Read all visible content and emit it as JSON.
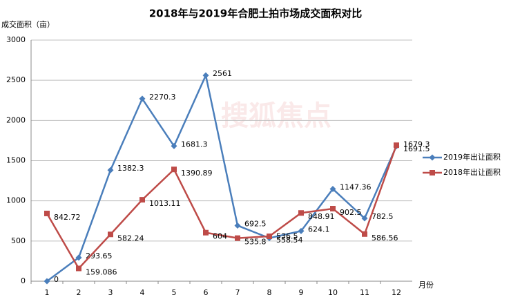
{
  "chart_data": {
    "type": "line",
    "title": "2018年与2019年合肥土拍市场成交面积对比",
    "y_label": "成交面积（亩）",
    "x_label": "月份",
    "watermark": "搜狐焦点",
    "categories": [
      "1",
      "2",
      "3",
      "4",
      "5",
      "6",
      "7",
      "8",
      "9",
      "10",
      "11",
      "12"
    ],
    "series": [
      {
        "name": "2019年出让面积",
        "color": "#4a7ebb",
        "marker": "diamond",
        "values": [
          0,
          293.65,
          1382.3,
          2270.3,
          1681.3,
          2561,
          692.5,
          536.5,
          624.1,
          1147.36,
          782.5,
          1679.3
        ]
      },
      {
        "name": "2018年出让面积",
        "color": "#be4b48",
        "marker": "square",
        "values": [
          842.72,
          159.086,
          582.24,
          1013.11,
          1390.89,
          604,
          535.8,
          558.54,
          848.91,
          902.5,
          586.56,
          1691.5
        ]
      }
    ],
    "ylim": [
      0,
      3000
    ],
    "yticks": [
      0,
      500,
      1000,
      1500,
      2000,
      2500,
      3000
    ],
    "grid": true,
    "legend": "right"
  }
}
